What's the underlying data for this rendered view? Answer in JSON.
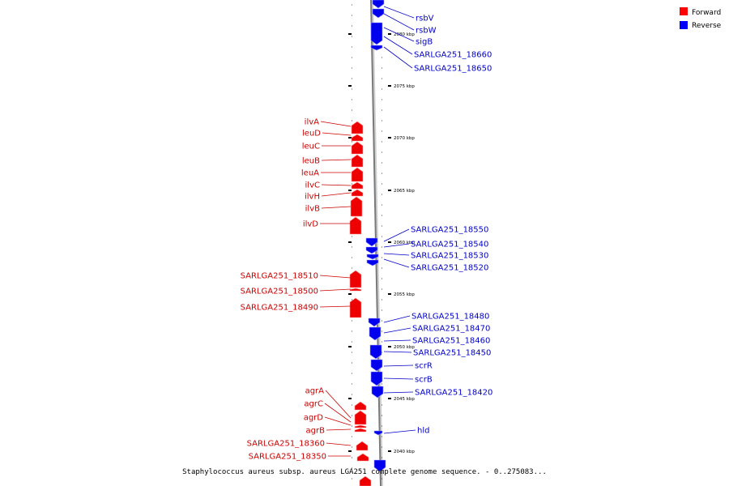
{
  "legend": {
    "forward": {
      "label": "Forward",
      "color": "#ff0000"
    },
    "reverse": {
      "label": "Reverse",
      "color": "#0000ff"
    }
  },
  "caption": "Staphylococcus aureus subsp. aureus LGA251 complete genome sequence. - 0..275083...",
  "ticks": [
    "2080 kbp",
    "2075 kbp",
    "2070 kbp",
    "2065 kbp",
    "2060 kbp",
    "2055 kbp",
    "2050 kbp",
    "2045 kbp",
    "2040 kbp"
  ],
  "forward_genes": [
    "ilvA",
    "leuD",
    "leuC",
    "leuB",
    "leuA",
    "ilvC",
    "ilvH",
    "ilvB",
    "ilvD",
    "SARLGA251_18510",
    "SARLGA251_18500",
    "SARLGA251_18490",
    "agrA",
    "agrC",
    "agrD",
    "agrB",
    "SARLGA251_18360",
    "SARLGA251_18350"
  ],
  "reverse_genes": [
    "rsbV",
    "rsbW",
    "sigB",
    "SARLGA251_18660",
    "SARLGA251_18650",
    "SARLGA251_18550",
    "SARLGA251_18540",
    "SARLGA251_18530",
    "SARLGA251_18520",
    "SARLGA251_18480",
    "SARLGA251_18470",
    "SARLGA251_18460",
    "SARLGA251_18450",
    "scrR",
    "scrB",
    "SARLGA251_18420",
    "hld"
  ]
}
